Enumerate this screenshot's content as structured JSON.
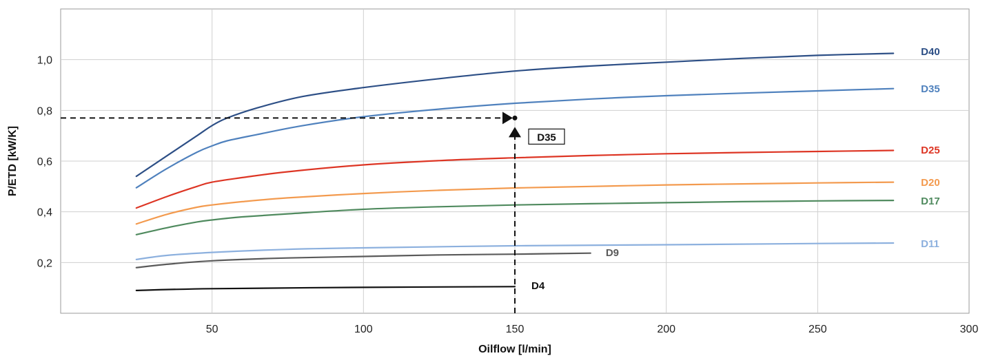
{
  "chart_data": {
    "type": "line",
    "xlabel": "Oilflow [l/min]",
    "ylabel": "P/ETD [kW/K]",
    "xlim": [
      0,
      300
    ],
    "ylim": [
      0,
      1.2
    ],
    "x_ticks": [
      {
        "value": 50,
        "label": "50"
      },
      {
        "value": 100,
        "label": "100"
      },
      {
        "value": 150,
        "label": "150"
      },
      {
        "value": 200,
        "label": "200"
      },
      {
        "value": 250,
        "label": "250"
      },
      {
        "value": 300,
        "label": "300"
      }
    ],
    "y_ticks": [
      {
        "value": 0.2,
        "label": "0,2"
      },
      {
        "value": 0.4,
        "label": "0,4"
      },
      {
        "value": 0.6,
        "label": "0,6"
      },
      {
        "value": 0.8,
        "label": "0,8"
      },
      {
        "value": 1.0,
        "label": "1,0"
      }
    ],
    "grid": true,
    "series": [
      {
        "name": "D40",
        "color": "#2d4f86",
        "x": [
          25,
          35,
          45,
          50,
          55,
          65,
          80,
          100,
          125,
          150,
          175,
          200,
          225,
          250,
          275
        ],
        "y": [
          0.54,
          0.62,
          0.7,
          0.74,
          0.77,
          0.81,
          0.855,
          0.89,
          0.925,
          0.955,
          0.975,
          0.99,
          1.005,
          1.017,
          1.025
        ]
      },
      {
        "name": "D35",
        "color": "#4f81bd",
        "x": [
          25,
          35,
          45,
          50,
          55,
          65,
          80,
          100,
          125,
          150,
          175,
          200,
          225,
          250,
          275
        ],
        "y": [
          0.495,
          0.57,
          0.635,
          0.66,
          0.68,
          0.705,
          0.74,
          0.775,
          0.805,
          0.828,
          0.845,
          0.858,
          0.868,
          0.877,
          0.886
        ]
      },
      {
        "name": "D25",
        "color": "#dd3524",
        "x": [
          25,
          35,
          45,
          50,
          60,
          75,
          100,
          125,
          150,
          175,
          200,
          225,
          250,
          275
        ],
        "y": [
          0.415,
          0.46,
          0.5,
          0.517,
          0.535,
          0.558,
          0.585,
          0.602,
          0.613,
          0.622,
          0.629,
          0.634,
          0.638,
          0.642
        ]
      },
      {
        "name": "D20",
        "color": "#f39a4e",
        "x": [
          25,
          35,
          45,
          50,
          60,
          75,
          100,
          125,
          150,
          175,
          200,
          225,
          250,
          275
        ],
        "y": [
          0.352,
          0.39,
          0.418,
          0.427,
          0.44,
          0.455,
          0.472,
          0.485,
          0.494,
          0.5,
          0.506,
          0.51,
          0.514,
          0.517
        ]
      },
      {
        "name": "D17",
        "color": "#4f8a5e",
        "x": [
          25,
          35,
          45,
          50,
          60,
          75,
          100,
          125,
          150,
          175,
          200,
          225,
          250,
          275
        ],
        "y": [
          0.31,
          0.337,
          0.36,
          0.368,
          0.38,
          0.392,
          0.41,
          0.42,
          0.427,
          0.432,
          0.436,
          0.44,
          0.443,
          0.445
        ]
      },
      {
        "name": "D11",
        "color": "#8cb0de",
        "x": [
          25,
          35,
          50,
          75,
          100,
          150,
          200,
          250,
          275
        ],
        "y": [
          0.212,
          0.228,
          0.24,
          0.252,
          0.258,
          0.266,
          0.27,
          0.275,
          0.277
        ]
      },
      {
        "name": "D9",
        "color": "#5a5a5a",
        "x": [
          25,
          35,
          50,
          75,
          100,
          125,
          150,
          175
        ],
        "y": [
          0.18,
          0.193,
          0.207,
          0.218,
          0.224,
          0.23,
          0.233,
          0.237
        ]
      },
      {
        "name": "D4",
        "color": "#111111",
        "x": [
          25,
          50,
          100,
          150
        ],
        "y": [
          0.09,
          0.097,
          0.102,
          0.105
        ]
      }
    ],
    "annotation": {
      "label": "D35",
      "point": {
        "x": 150,
        "y": 0.77
      }
    }
  }
}
